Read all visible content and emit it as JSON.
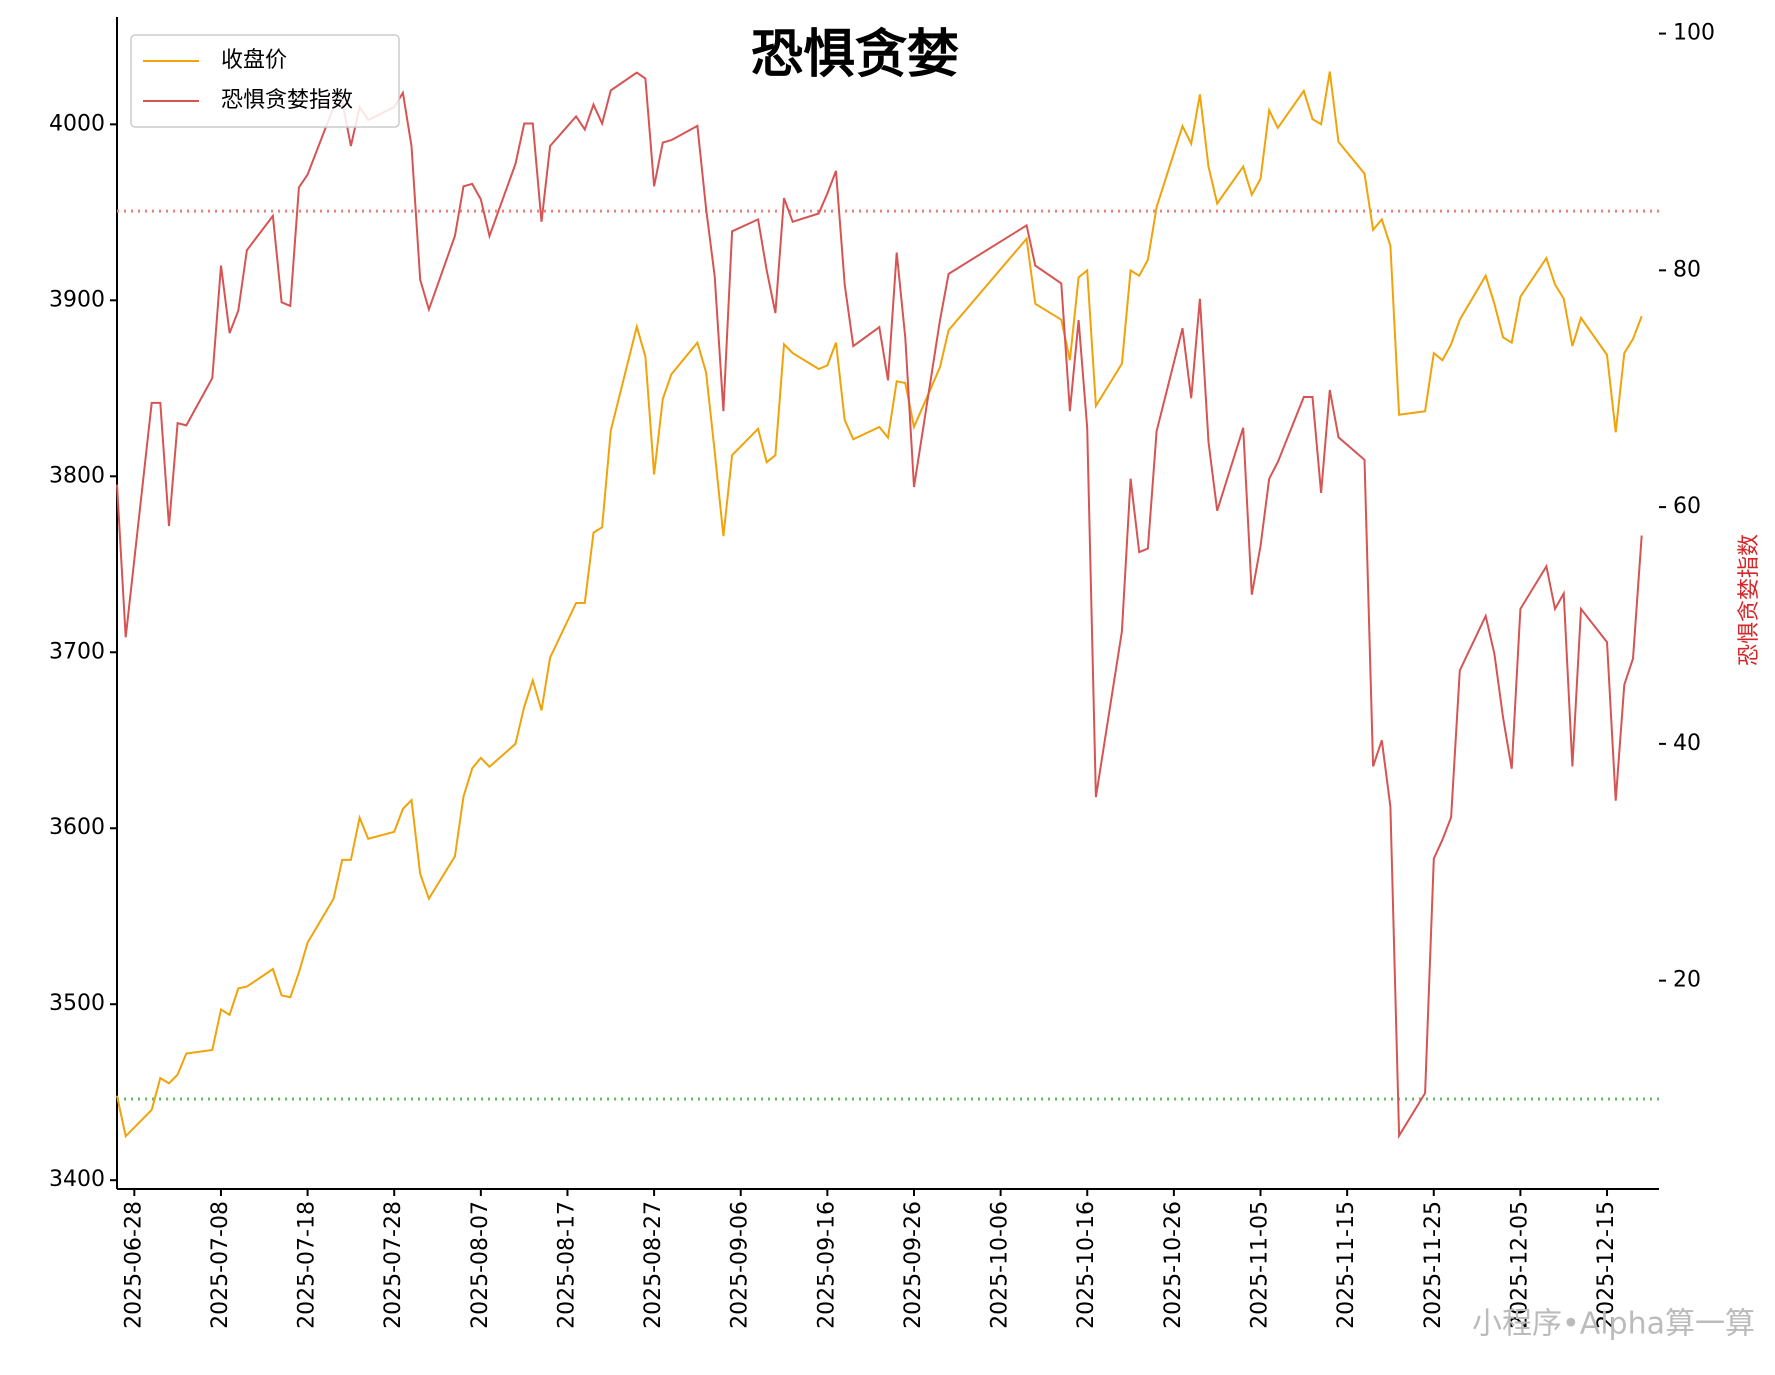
{
  "chart_data": {
    "type": "line",
    "title": "恐惧贪婪",
    "y2_label": "恐惧贪婪指数",
    "watermark": "小程序•Alpha算一算",
    "x": [
      "2025-06-26",
      "2025-06-27",
      "2025-06-30",
      "2025-07-01",
      "2025-07-02",
      "2025-07-03",
      "2025-07-04",
      "2025-07-07",
      "2025-07-08",
      "2025-07-09",
      "2025-07-10",
      "2025-07-11",
      "2025-07-14",
      "2025-07-15",
      "2025-07-16",
      "2025-07-17",
      "2025-07-18",
      "2025-07-21",
      "2025-07-22",
      "2025-07-23",
      "2025-07-24",
      "2025-07-25",
      "2025-07-28",
      "2025-07-29",
      "2025-07-30",
      "2025-07-31",
      "2025-08-01",
      "2025-08-04",
      "2025-08-05",
      "2025-08-06",
      "2025-08-07",
      "2025-08-08",
      "2025-08-11",
      "2025-08-12",
      "2025-08-13",
      "2025-08-14",
      "2025-08-15",
      "2025-08-18",
      "2025-08-19",
      "2025-08-20",
      "2025-08-21",
      "2025-08-22",
      "2025-08-25",
      "2025-08-26",
      "2025-08-27",
      "2025-08-28",
      "2025-08-29",
      "2025-09-01",
      "2025-09-02",
      "2025-09-03",
      "2025-09-04",
      "2025-09-05",
      "2025-09-08",
      "2025-09-09",
      "2025-09-10",
      "2025-09-11",
      "2025-09-12",
      "2025-09-15",
      "2025-09-16",
      "2025-09-17",
      "2025-09-18",
      "2025-09-19",
      "2025-09-22",
      "2025-09-23",
      "2025-09-24",
      "2025-09-25",
      "2025-09-26",
      "2025-09-29",
      "2025-09-30",
      "2025-10-09",
      "2025-10-10",
      "2025-10-13",
      "2025-10-14",
      "2025-10-15",
      "2025-10-16",
      "2025-10-17",
      "2025-10-20",
      "2025-10-21",
      "2025-10-22",
      "2025-10-23",
      "2025-10-24",
      "2025-10-27",
      "2025-10-28",
      "2025-10-29",
      "2025-10-30",
      "2025-10-31",
      "2025-11-03",
      "2025-11-04",
      "2025-11-05",
      "2025-11-06",
      "2025-11-07",
      "2025-11-10",
      "2025-11-11",
      "2025-11-12",
      "2025-11-13",
      "2025-11-14",
      "2025-11-17",
      "2025-11-18",
      "2025-11-19",
      "2025-11-20",
      "2025-11-21",
      "2025-11-24",
      "2025-11-25",
      "2025-11-26",
      "2025-11-27",
      "2025-11-28",
      "2025-12-01",
      "2025-12-02",
      "2025-12-03",
      "2025-12-04",
      "2025-12-05",
      "2025-12-08",
      "2025-12-09",
      "2025-12-10",
      "2025-12-11",
      "2025-12-12",
      "2025-12-15",
      "2025-12-16",
      "2025-12-17",
      "2025-12-18",
      "2025-12-19"
    ],
    "series": [
      {
        "name": "收盘价",
        "color": "#f0a30a",
        "values": [
          3448,
          3425,
          3440,
          3458,
          3455,
          3460,
          3472,
          3474,
          3497,
          3494,
          3509,
          3510,
          3520,
          3505,
          3504,
          3518,
          3535,
          3560,
          3582,
          3582,
          3606,
          3594,
          3598,
          3611,
          3616,
          3574,
          3560,
          3584,
          3618,
          3634,
          3640,
          3635,
          3648,
          3669,
          3684,
          3667,
          3697,
          3728,
          3728,
          3768,
          3771,
          3826,
          3885,
          3868,
          3801,
          3844,
          3858,
          3876,
          3859,
          3814,
          3766,
          3812,
          3827,
          3808,
          3812,
          3875,
          3870,
          3861,
          3863,
          3876,
          3832,
          3821,
          3828,
          3822,
          3854,
          3853,
          3828,
          3862,
          3883,
          3935,
          3898,
          3889,
          3866,
          3913,
          3917,
          3840,
          3864,
          3917,
          3914,
          3923,
          3953,
          3999,
          3989,
          4017,
          3976,
          3955,
          3976,
          3960,
          3969,
          4008,
          3998,
          4019,
          4003,
          4000,
          4030,
          3990,
          3972,
          3940,
          3946,
          3931,
          3835,
          3837,
          3870,
          3866,
          3875,
          3889,
          3914,
          3898,
          3879,
          3876,
          3902,
          3924,
          3909,
          3901,
          3874,
          3890,
          3869,
          3825,
          3870,
          3878,
          3891
        ]
      },
      {
        "name": "恐惧贪婪指数",
        "color": "#d65454",
        "axis": "y2",
        "values": [
          61.9,
          49,
          68.8,
          68.8,
          58.4,
          67.1,
          66.9,
          70.9,
          80.4,
          74.7,
          76.6,
          81.7,
          84.6,
          77.3,
          77,
          87,
          88.1,
          93.8,
          94.3,
          90.5,
          93.8,
          92.7,
          93.8,
          95,
          90.5,
          79.2,
          76.7,
          82.9,
          87.1,
          87.3,
          86,
          82.9,
          89,
          92.4,
          92.4,
          84.1,
          90.5,
          93,
          91.9,
          94,
          92.4,
          95.2,
          96.7,
          96.2,
          87.1,
          90.8,
          91,
          92.2,
          85.2,
          79.5,
          68.1,
          83.3,
          84.3,
          80,
          76.4,
          86.1,
          84.1,
          84.8,
          86.5,
          88.4,
          78.8,
          73.6,
          75.2,
          70.7,
          81.5,
          74.3,
          61.7,
          75.8,
          79.7,
          83.8,
          80.4,
          78.9,
          68.1,
          75.8,
          66.7,
          35.5,
          49.5,
          62.4,
          56.2,
          56.5,
          66.4,
          75.1,
          69.2,
          77.6,
          65.5,
          59.7,
          66.7,
          52.6,
          56.7,
          62.4,
          63.8,
          69.3,
          69.3,
          61.2,
          69.9,
          65.9,
          64,
          38.1,
          40.3,
          34.7,
          6.9,
          10.5,
          30.3,
          31.9,
          33.8,
          46.2,
          50.8,
          47.6,
          42.2,
          37.9,
          51.4,
          55,
          51.4,
          52.7,
          38.1,
          51.4,
          48.6,
          35.2,
          45,
          47.2,
          57.6
        ]
      }
    ],
    "hlines": [
      {
        "value": 85,
        "color": "#f08080",
        "axis": "y2"
      },
      {
        "value": 10,
        "color": "#66bb66",
        "axis": "y2"
      }
    ],
    "xlim": [
      "2025-06-26",
      "2025-12-21"
    ],
    "xticks": [
      "2025-06-28",
      "2025-07-08",
      "2025-07-18",
      "2025-07-28",
      "2025-08-07",
      "2025-08-17",
      "2025-08-27",
      "2025-09-06",
      "2025-09-16",
      "2025-09-26",
      "2025-10-06",
      "2025-10-16",
      "2025-10-26",
      "2025-11-05",
      "2025-11-15",
      "2025-11-25",
      "2025-12-05",
      "2025-12-15"
    ],
    "ylim": [
      3395,
      4061
    ],
    "yticks": [
      3400,
      3500,
      3600,
      3700,
      3800,
      3900,
      4000
    ],
    "y2lim": [
      2.4,
      101.4
    ],
    "y2ticks": [
      20,
      40,
      60,
      80,
      100
    ],
    "legend": "upper left",
    "y2_label_color": "#d62728"
  }
}
